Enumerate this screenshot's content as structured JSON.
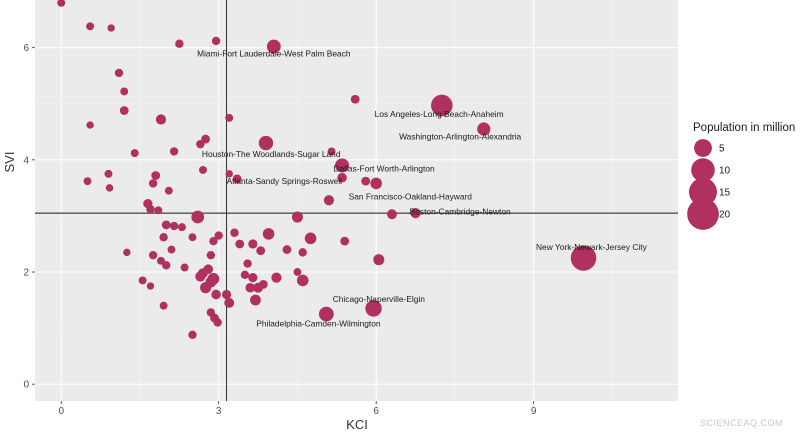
{
  "chart_data": {
    "type": "scatter",
    "title": "",
    "xlabel": "KCI",
    "ylabel": "SVI",
    "xlim": [
      -0.5,
      11.75
    ],
    "ylim": [
      -0.3,
      6.85
    ],
    "xticks": [
      0,
      3,
      6,
      9
    ],
    "yticks": [
      0,
      2,
      4,
      6
    ],
    "reference_lines": {
      "vertical_x": 3.15,
      "horizontal_y": 3.05
    },
    "point_color": "#b03060",
    "grid": true,
    "legend": {
      "title": "Population in million",
      "position": "right",
      "entries": [
        {
          "label": "5",
          "value": 5
        },
        {
          "label": "10",
          "value": 10
        },
        {
          "label": "15",
          "value": 15
        },
        {
          "label": "20",
          "value": 20
        }
      ]
    },
    "points": [
      {
        "x": 0.0,
        "y": 6.8,
        "pop": 0.4
      },
      {
        "x": 0.55,
        "y": 6.38,
        "pop": 0.4
      },
      {
        "x": 0.95,
        "y": 6.35,
        "pop": 0.3
      },
      {
        "x": 2.25,
        "y": 6.07,
        "pop": 0.5
      },
      {
        "x": 2.95,
        "y": 6.12,
        "pop": 0.5
      },
      {
        "x": 1.1,
        "y": 5.55,
        "pop": 0.5
      },
      {
        "x": 1.2,
        "y": 5.22,
        "pop": 0.4
      },
      {
        "x": 1.2,
        "y": 4.88,
        "pop": 0.6
      },
      {
        "x": 1.9,
        "y": 4.72,
        "pop": 1.0
      },
      {
        "x": 0.55,
        "y": 4.62,
        "pop": 0.3
      },
      {
        "x": 3.2,
        "y": 4.75,
        "pop": 0.4
      },
      {
        "x": 2.65,
        "y": 4.28,
        "pop": 0.5
      },
      {
        "x": 2.75,
        "y": 4.37,
        "pop": 0.6
      },
      {
        "x": 1.4,
        "y": 4.12,
        "pop": 0.4
      },
      {
        "x": 2.15,
        "y": 4.15,
        "pop": 0.5
      },
      {
        "x": 0.5,
        "y": 3.62,
        "pop": 0.4
      },
      {
        "x": 0.9,
        "y": 3.75,
        "pop": 0.4
      },
      {
        "x": 0.92,
        "y": 3.5,
        "pop": 0.3
      },
      {
        "x": 1.75,
        "y": 3.58,
        "pop": 0.5
      },
      {
        "x": 1.8,
        "y": 3.72,
        "pop": 0.6
      },
      {
        "x": 1.65,
        "y": 3.22,
        "pop": 0.7
      },
      {
        "x": 1.7,
        "y": 3.12,
        "pop": 0.5
      },
      {
        "x": 1.85,
        "y": 3.1,
        "pop": 0.4
      },
      {
        "x": 2.05,
        "y": 3.45,
        "pop": 0.4
      },
      {
        "x": 2.7,
        "y": 3.82,
        "pop": 0.4
      },
      {
        "x": 3.2,
        "y": 3.75,
        "pop": 0.3
      },
      {
        "x": 2.6,
        "y": 2.98,
        "pop": 2.0
      },
      {
        "x": 2.0,
        "y": 2.84,
        "pop": 0.6
      },
      {
        "x": 2.15,
        "y": 2.82,
        "pop": 0.5
      },
      {
        "x": 2.3,
        "y": 2.8,
        "pop": 0.4
      },
      {
        "x": 1.95,
        "y": 2.62,
        "pop": 0.5
      },
      {
        "x": 1.25,
        "y": 2.35,
        "pop": 0.3
      },
      {
        "x": 1.75,
        "y": 2.3,
        "pop": 0.5
      },
      {
        "x": 1.9,
        "y": 2.2,
        "pop": 0.4
      },
      {
        "x": 2.0,
        "y": 2.12,
        "pop": 0.5
      },
      {
        "x": 2.1,
        "y": 2.4,
        "pop": 0.4
      },
      {
        "x": 2.35,
        "y": 2.08,
        "pop": 0.4
      },
      {
        "x": 2.5,
        "y": 2.62,
        "pop": 0.4
      },
      {
        "x": 2.9,
        "y": 2.55,
        "pop": 0.5
      },
      {
        "x": 3.0,
        "y": 2.65,
        "pop": 0.5
      },
      {
        "x": 2.85,
        "y": 2.3,
        "pop": 0.5
      },
      {
        "x": 2.8,
        "y": 2.05,
        "pop": 0.8
      },
      {
        "x": 2.7,
        "y": 1.98,
        "pop": 0.9
      },
      {
        "x": 2.65,
        "y": 1.92,
        "pop": 1.0
      },
      {
        "x": 2.75,
        "y": 1.72,
        "pop": 1.3
      },
      {
        "x": 2.9,
        "y": 1.88,
        "pop": 1.5
      },
      {
        "x": 2.85,
        "y": 1.82,
        "pop": 1.2
      },
      {
        "x": 2.95,
        "y": 1.6,
        "pop": 0.8
      },
      {
        "x": 3.2,
        "y": 1.45,
        "pop": 0.9
      },
      {
        "x": 3.15,
        "y": 1.6,
        "pop": 0.7
      },
      {
        "x": 2.85,
        "y": 1.28,
        "pop": 0.5
      },
      {
        "x": 2.92,
        "y": 1.18,
        "pop": 0.6
      },
      {
        "x": 2.98,
        "y": 1.1,
        "pop": 0.5
      },
      {
        "x": 2.5,
        "y": 0.88,
        "pop": 0.5
      },
      {
        "x": 1.95,
        "y": 1.4,
        "pop": 0.4
      },
      {
        "x": 1.55,
        "y": 1.85,
        "pop": 0.4
      },
      {
        "x": 1.7,
        "y": 1.75,
        "pop": 0.3
      },
      {
        "x": 3.3,
        "y": 2.7,
        "pop": 0.5
      },
      {
        "x": 3.4,
        "y": 2.5,
        "pop": 0.6
      },
      {
        "x": 3.65,
        "y": 2.5,
        "pop": 0.7
      },
      {
        "x": 3.8,
        "y": 2.38,
        "pop": 0.6
      },
      {
        "x": 3.95,
        "y": 2.68,
        "pop": 1.5
      },
      {
        "x": 3.55,
        "y": 2.15,
        "pop": 0.5
      },
      {
        "x": 3.5,
        "y": 1.95,
        "pop": 0.5
      },
      {
        "x": 3.65,
        "y": 1.9,
        "pop": 0.7
      },
      {
        "x": 3.6,
        "y": 1.72,
        "pop": 0.8
      },
      {
        "x": 3.75,
        "y": 1.72,
        "pop": 0.9
      },
      {
        "x": 3.85,
        "y": 1.78,
        "pop": 0.6
      },
      {
        "x": 3.7,
        "y": 1.5,
        "pop": 1.2
      },
      {
        "x": 4.1,
        "y": 1.9,
        "pop": 1.0
      },
      {
        "x": 4.3,
        "y": 2.4,
        "pop": 0.6
      },
      {
        "x": 4.5,
        "y": 2.0,
        "pop": 0.4
      },
      {
        "x": 4.6,
        "y": 2.35,
        "pop": 0.5
      },
      {
        "x": 4.75,
        "y": 2.6,
        "pop": 1.5
      },
      {
        "x": 4.5,
        "y": 2.98,
        "pop": 1.3
      },
      {
        "x": 4.6,
        "y": 1.85,
        "pop": 1.5
      },
      {
        "x": 5.4,
        "y": 2.55,
        "pop": 0.6
      },
      {
        "x": 5.1,
        "y": 3.28,
        "pop": 1.0
      },
      {
        "x": 5.6,
        "y": 5.08,
        "pop": 0.6
      },
      {
        "x": 5.8,
        "y": 3.62,
        "pop": 0.6
      },
      {
        "x": 6.05,
        "y": 2.22,
        "pop": 1.3
      },
      {
        "x": 6.3,
        "y": 3.03,
        "pop": 0.9
      },
      {
        "x": 4.05,
        "y": 6.02,
        "pop": 2.5
      },
      {
        "x": 7.25,
        "y": 4.97,
        "pop": 8.0
      },
      {
        "x": 8.05,
        "y": 4.55,
        "pop": 2.2
      },
      {
        "x": 3.9,
        "y": 4.3,
        "pop": 2.8
      },
      {
        "x": 5.15,
        "y": 4.15,
        "pop": 0.4
      },
      {
        "x": 5.35,
        "y": 3.9,
        "pop": 2.6
      },
      {
        "x": 5.35,
        "y": 3.68,
        "pop": 0.8
      },
      {
        "x": 3.35,
        "y": 3.66,
        "pop": 0.6
      },
      {
        "x": 6.0,
        "y": 3.58,
        "pop": 1.5
      },
      {
        "x": 6.75,
        "y": 3.05,
        "pop": 1.0
      },
      {
        "x": 9.95,
        "y": 2.25,
        "pop": 12.0
      },
      {
        "x": 5.95,
        "y": 1.35,
        "pop": 4.0
      },
      {
        "x": 5.05,
        "y": 1.25,
        "pop": 3.0
      }
    ],
    "annotations": [
      {
        "text": "Miami-Fort Lauderdale-West Palm Beach",
        "x": 4.05,
        "y": 5.9
      },
      {
        "text": "Los Angeles-Long Beach-Anaheim",
        "x": 7.2,
        "y": 4.82
      },
      {
        "text": "Washington-Arlington-Alexandria",
        "x": 7.6,
        "y": 4.42
      },
      {
        "text": "Houston-The Woodlands-Sugar Land",
        "x": 4.0,
        "y": 4.1
      },
      {
        "text": "Dallas-Fort Worth-Arlington",
        "x": 6.15,
        "y": 3.85
      },
      {
        "text": "Atlanta-Sandy Springs-Roswell",
        "x": 4.25,
        "y": 3.62
      },
      {
        "text": "San Francisco-Oakland-Hayward",
        "x": 6.65,
        "y": 3.35
      },
      {
        "text": "Boston-Cambridge-Newton",
        "x": 7.6,
        "y": 3.08
      },
      {
        "text": "New York-Newark-Jersey City",
        "x": 10.1,
        "y": 2.45
      },
      {
        "text": "Chicago-Naperville-Elgin",
        "x": 6.05,
        "y": 1.52
      },
      {
        "text": "Philadelphia-Camden-Wilmington",
        "x": 4.9,
        "y": 1.08
      }
    ]
  },
  "watermark": "SCIENCEAQ.COM"
}
